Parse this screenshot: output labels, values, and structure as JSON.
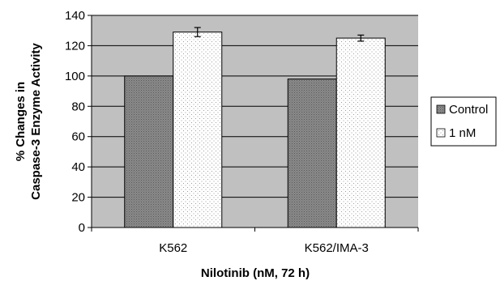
{
  "chart_data": {
    "type": "bar",
    "categories": [
      "K562",
      "K562/IMA-3"
    ],
    "series": [
      {
        "name": "Control",
        "values": [
          100,
          98
        ],
        "errors": [
          0,
          0
        ],
        "color": "#808080",
        "pattern": "dense-dots"
      },
      {
        "name": "1 nM",
        "values": [
          129,
          125
        ],
        "errors": [
          3,
          2
        ],
        "color": "#ffffff",
        "pattern": "sparse-dots"
      }
    ],
    "xlabel": "Nilotinib (nM, 72 h)",
    "ylabel_lines": [
      "% Changes in",
      "Caspase-3 Enzyme Activity"
    ],
    "ylim": [
      0,
      140
    ],
    "yticks": [
      0,
      20,
      40,
      60,
      80,
      100,
      120,
      140
    ],
    "grid": "horizontal",
    "plot_background": "#c0c0c0",
    "legend_position": "right"
  }
}
